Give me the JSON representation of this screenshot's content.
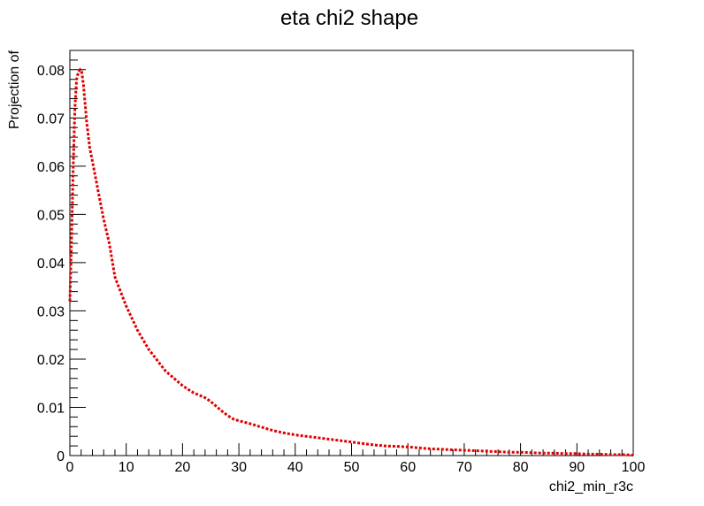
{
  "chart_data": {
    "type": "line",
    "title": "eta chi2 shape",
    "xlabel": "chi2_min_r3c",
    "ylabel": "Projection of",
    "xlim": [
      0,
      100
    ],
    "ylim": [
      0,
      0.084
    ],
    "x_ticks": [
      0,
      10,
      20,
      30,
      40,
      50,
      60,
      70,
      80,
      90,
      100
    ],
    "x_tick_labels": [
      "0",
      "10",
      "20",
      "30",
      "40",
      "50",
      "60",
      "70",
      "80",
      "90",
      "100"
    ],
    "y_ticks": [
      0,
      0.01,
      0.02,
      0.03,
      0.04,
      0.05,
      0.06,
      0.07,
      0.08
    ],
    "y_tick_labels": [
      "0",
      "0.01",
      "0.02",
      "0.03",
      "0.04",
      "0.05",
      "0.06",
      "0.07",
      "0.08"
    ],
    "grid": false,
    "series": [
      {
        "color": "#e00000",
        "style": "dotted",
        "x": [
          0,
          0.3,
          0.6,
          0.9,
          1.2,
          1.5,
          1.8,
          2.1,
          2.4,
          2.7,
          3.0,
          3.5,
          4.0,
          4.5,
          5,
          6,
          7,
          8,
          9,
          10,
          11,
          12,
          13,
          14,
          15,
          16,
          17,
          18,
          19,
          20,
          21,
          22,
          23,
          24,
          25,
          26,
          27,
          28,
          29,
          30,
          32,
          34,
          36,
          38,
          40,
          42,
          44,
          46,
          48,
          50,
          52,
          54,
          56,
          58,
          60,
          62,
          64,
          66,
          68,
          70,
          72,
          74,
          76,
          78,
          80,
          82,
          84,
          86,
          88,
          90,
          92,
          94,
          96,
          98,
          100
        ],
        "y": [
          0.032,
          0.045,
          0.06,
          0.072,
          0.078,
          0.0795,
          0.08,
          0.0795,
          0.077,
          0.073,
          0.069,
          0.064,
          0.061,
          0.058,
          0.055,
          0.049,
          0.044,
          0.037,
          0.034,
          0.031,
          0.0285,
          0.026,
          0.024,
          0.022,
          0.0205,
          0.019,
          0.0175,
          0.0165,
          0.0155,
          0.0145,
          0.0137,
          0.013,
          0.0125,
          0.012,
          0.0112,
          0.0102,
          0.0092,
          0.0083,
          0.0076,
          0.0072,
          0.0066,
          0.0059,
          0.0052,
          0.0047,
          0.0043,
          0.004,
          0.0037,
          0.0034,
          0.0031,
          0.0028,
          0.0025,
          0.0022,
          0.002,
          0.0019,
          0.0018,
          0.0016,
          0.0014,
          0.0013,
          0.0012,
          0.0011,
          0.001,
          0.0009,
          0.0008,
          0.0007,
          0.0007,
          0.0006,
          0.0005,
          0.0005,
          0.0004,
          0.0004,
          0.0003,
          0.0003,
          0.0002,
          0.0002,
          0.0001
        ]
      }
    ]
  }
}
